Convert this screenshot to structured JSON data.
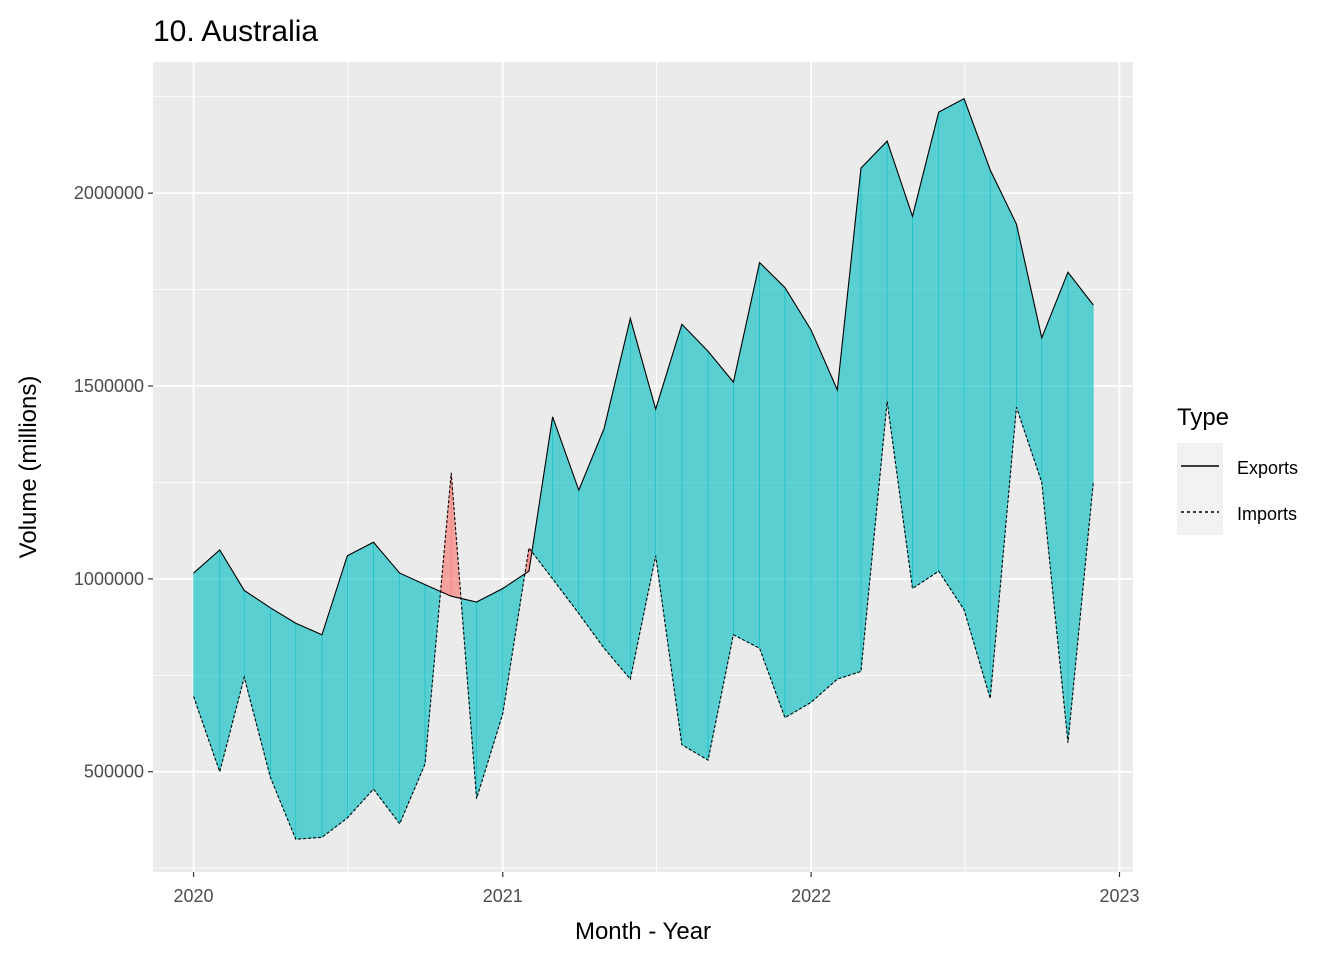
{
  "chart_data": {
    "type": "area",
    "title": "10. Australia",
    "xlabel": "Month - Year",
    "ylabel": "Volume (millions)",
    "x_ticks": [
      "2020",
      "2021",
      "2022",
      "2023"
    ],
    "y_ticks": [
      "500000",
      "1000000",
      "1500000",
      "2000000"
    ],
    "y_tick_values": [
      500000,
      1000000,
      1500000,
      2000000
    ],
    "ylim": [
      240000,
      2340000
    ],
    "xlim": [
      "2019-11-14",
      "2023-01-17"
    ],
    "grid": true,
    "legend": {
      "title": "Type",
      "placement": "right",
      "entries": [
        {
          "label": "Exports",
          "linetype": "solid"
        },
        {
          "label": "Imports",
          "linetype": "dashed"
        }
      ]
    },
    "fill_colors": {
      "exports_above": "#00bfc4",
      "imports_above": "#f8766d"
    },
    "x": [
      "2020-01",
      "2020-02",
      "2020-03",
      "2020-04",
      "2020-05",
      "2020-06",
      "2020-07",
      "2020-08",
      "2020-09",
      "2020-10",
      "2020-11",
      "2020-12",
      "2021-01",
      "2021-02",
      "2021-03",
      "2021-04",
      "2021-05",
      "2021-06",
      "2021-07",
      "2021-08",
      "2021-09",
      "2021-10",
      "2021-11",
      "2021-12",
      "2022-01",
      "2022-02",
      "2022-03",
      "2022-04",
      "2022-05",
      "2022-06",
      "2022-07",
      "2022-08",
      "2022-09",
      "2022-10",
      "2022-11",
      "2022-12"
    ],
    "series": [
      {
        "name": "Exports",
        "values": [
          1015000,
          1075000,
          970000,
          925000,
          885000,
          855000,
          1060000,
          1095000,
          1015000,
          985000,
          955000,
          940000,
          975000,
          1020000,
          1420000,
          1230000,
          1390000,
          1675000,
          1440000,
          1660000,
          1590000,
          1510000,
          1820000,
          1755000,
          1645000,
          1490000,
          2065000,
          2135000,
          1940000,
          2210000,
          2245000,
          2060000,
          1920000,
          1625000,
          1795000,
          1710000
        ]
      },
      {
        "name": "Imports",
        "values": [
          695000,
          500000,
          745000,
          485000,
          325000,
          330000,
          380000,
          455000,
          365000,
          520000,
          1275000,
          430000,
          650000,
          1080000,
          1000000,
          910000,
          820000,
          740000,
          1060000,
          570000,
          530000,
          855000,
          820000,
          640000,
          680000,
          740000,
          760000,
          1460000,
          975000,
          1020000,
          920000,
          690000,
          1445000,
          1250000,
          575000,
          1250000
        ]
      }
    ]
  }
}
